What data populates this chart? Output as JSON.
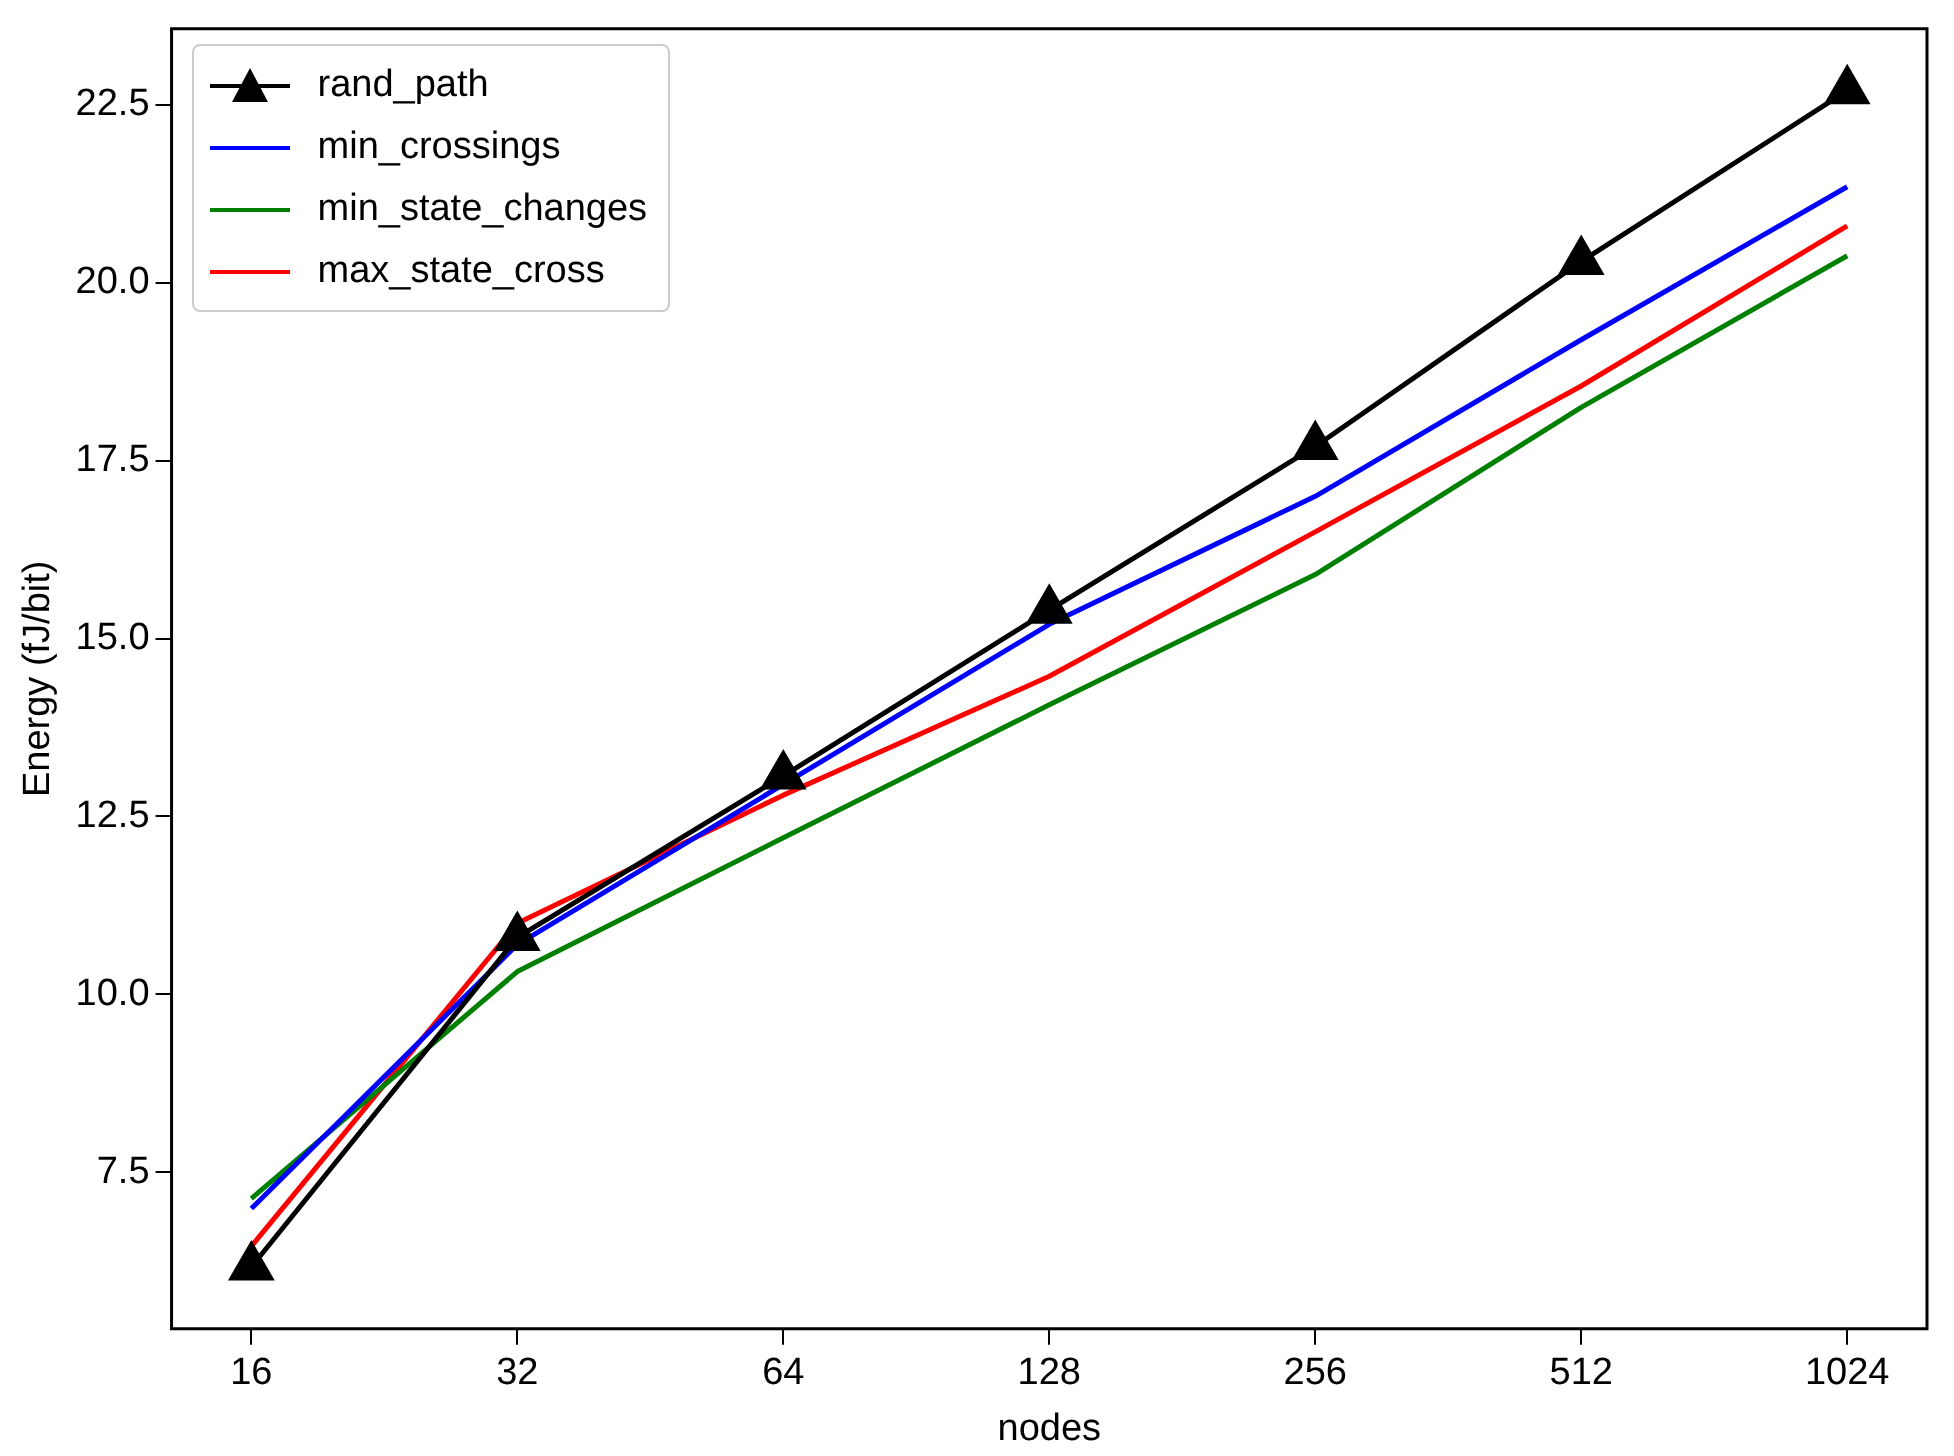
{
  "chart_data": {
    "type": "line",
    "xlabel": "nodes",
    "ylabel": "Energy (fJ/bit)",
    "categories": [
      "16",
      "32",
      "64",
      "128",
      "256",
      "512",
      "1024"
    ],
    "ylim": [
      5.3,
      23.57
    ],
    "yticks": [
      7.5,
      {
        "value": 10,
        "label": "10.0"
      },
      12.5,
      {
        "value": 15,
        "label": "15.0"
      },
      17.5,
      {
        "value": 20,
        "label": "20.0"
      },
      22.5
    ],
    "grid": false,
    "legend": "top left",
    "line_style": "solid",
    "series": [
      {
        "name": "rand_path",
        "color": "#000000",
        "marker": "triangle",
        "values": [
          6.17,
          10.8,
          13.07,
          15.4,
          17.7,
          20.3,
          22.7
        ]
      },
      {
        "name": "min_crossings",
        "color": "#0000ff",
        "marker": "none",
        "values": [
          6.99,
          10.7,
          12.95,
          15.2,
          17.0,
          19.2,
          21.35
        ]
      },
      {
        "name": "min_state_changes",
        "color": "#008000",
        "marker": "none",
        "values": [
          7.13,
          10.32,
          12.2,
          14.07,
          15.9,
          18.25,
          20.38
        ]
      },
      {
        "name": "max_state_cross",
        "color": "#ff0000",
        "marker": "none",
        "values": [
          6.46,
          11.0,
          12.8,
          14.47,
          16.5,
          18.55,
          20.8
        ]
      }
    ]
  }
}
